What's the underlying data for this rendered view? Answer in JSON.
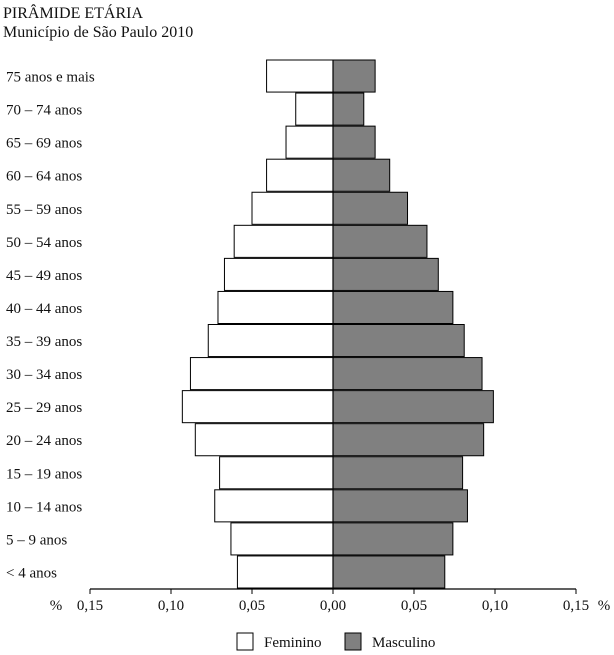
{
  "header": {
    "title": "PIRÂMIDE ETÁRIA",
    "subtitle": "Município de São Paulo 2010"
  },
  "chart_data": {
    "type": "bar",
    "orientation": "horizontal-population-pyramid",
    "categories": [
      "75 anos e mais",
      "70 – 74 anos",
      "65 – 69 anos",
      "60 – 64 anos",
      "55 – 59 anos",
      "50 – 54 anos",
      "45 – 49 anos",
      "40 – 44 anos",
      "35 – 39 anos",
      "30 – 34 anos",
      "25 – 29 anos",
      "20 – 24 anos",
      "15 – 19 anos",
      "10 – 14 anos",
      "5 – 9 anos",
      "< 4 anos"
    ],
    "series": [
      {
        "name": "Feminino",
        "color": "#ffffff",
        "values": [
          0.041,
          0.023,
          0.029,
          0.041,
          0.05,
          0.061,
          0.067,
          0.071,
          0.077,
          0.088,
          0.093,
          0.085,
          0.07,
          0.073,
          0.063,
          0.059
        ]
      },
      {
        "name": "Masculino",
        "color": "#808080",
        "values": [
          0.026,
          0.019,
          0.026,
          0.035,
          0.046,
          0.058,
          0.065,
          0.074,
          0.081,
          0.092,
          0.099,
          0.093,
          0.08,
          0.083,
          0.074,
          0.069
        ]
      }
    ],
    "xlim": [
      -0.15,
      0.15
    ],
    "x_ticks": [
      "0,15",
      "0,10",
      "0,05",
      "0,00",
      "0,05",
      "0,10",
      "0,15"
    ],
    "unit_left": "%",
    "unit_right": "%",
    "legend_position": "bottom-center",
    "grid": false
  }
}
